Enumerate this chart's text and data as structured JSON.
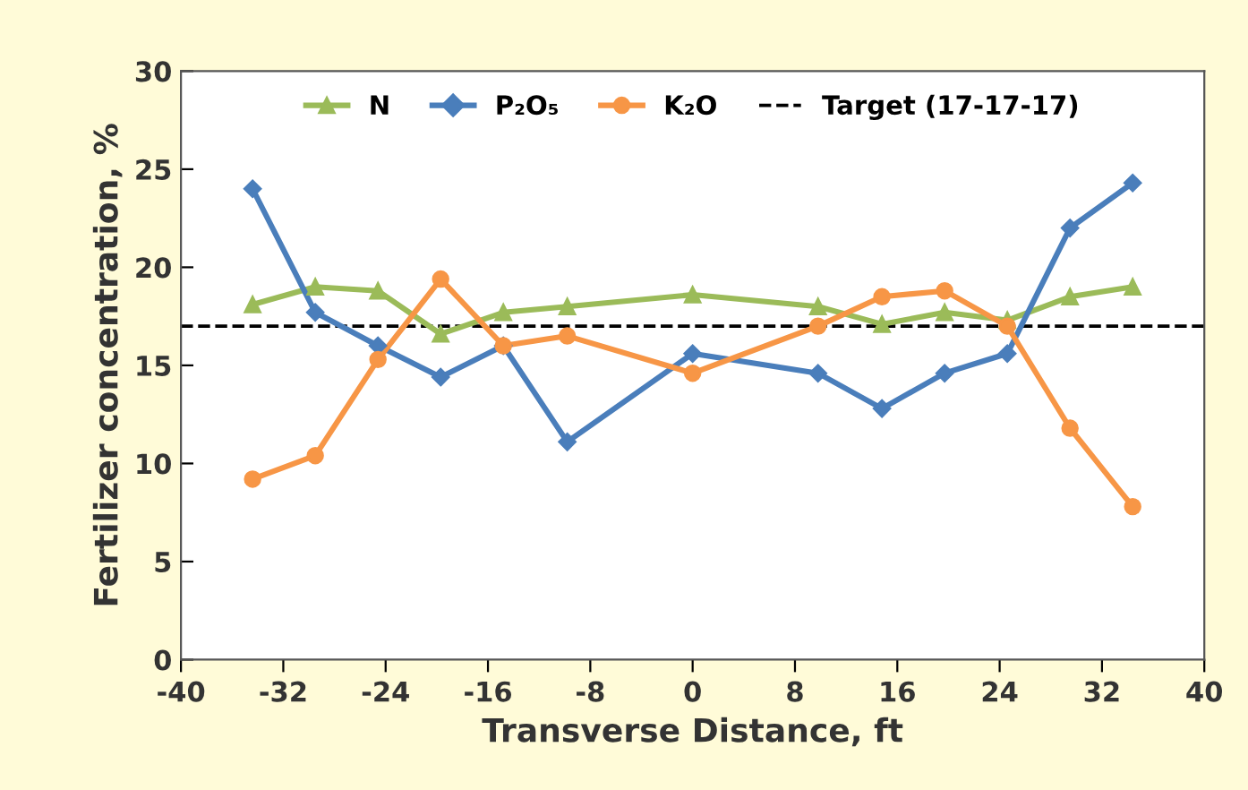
{
  "chart_data": {
    "type": "line",
    "xlabel": "Transverse Distance, ft",
    "ylabel": "Fertilizer concentration, %",
    "x": [
      -34.4,
      -29.5,
      -24.6,
      -19.7,
      -14.8,
      -9.8,
      0,
      9.8,
      14.8,
      19.7,
      24.6,
      29.5,
      34.4
    ],
    "series": [
      {
        "name": "N",
        "color": "#9bbb59",
        "marker": "triangle",
        "values": [
          18.1,
          19.0,
          18.8,
          16.6,
          17.7,
          18.0,
          18.6,
          18.0,
          17.1,
          17.7,
          17.3,
          18.5,
          19.0
        ]
      },
      {
        "name": "P₂O₅",
        "color": "#4a7ebb",
        "marker": "diamond",
        "values": [
          24.0,
          17.7,
          16.0,
          14.4,
          16.0,
          11.1,
          15.6,
          14.6,
          12.8,
          14.6,
          15.6,
          22.0,
          24.3
        ]
      },
      {
        "name": "K₂O",
        "color": "#f79646",
        "marker": "circle",
        "values": [
          9.2,
          10.4,
          15.3,
          19.4,
          16.0,
          16.5,
          14.6,
          17.0,
          18.5,
          18.8,
          17.0,
          11.8,
          7.8
        ]
      }
    ],
    "ref_lines": [
      {
        "axis": "y",
        "value": 17,
        "label": "Target (17-17-17)",
        "color": "#000000",
        "line_style": "dashed"
      }
    ],
    "xlim": [
      -40,
      40
    ],
    "xticks": [
      -40,
      -32,
      -24,
      -16,
      -8,
      0,
      8,
      16,
      24,
      32,
      40
    ],
    "ylim": [
      0,
      30
    ],
    "yticks": [
      0,
      5,
      10,
      15,
      20,
      25,
      30
    ],
    "grid": false,
    "legend": "top"
  }
}
